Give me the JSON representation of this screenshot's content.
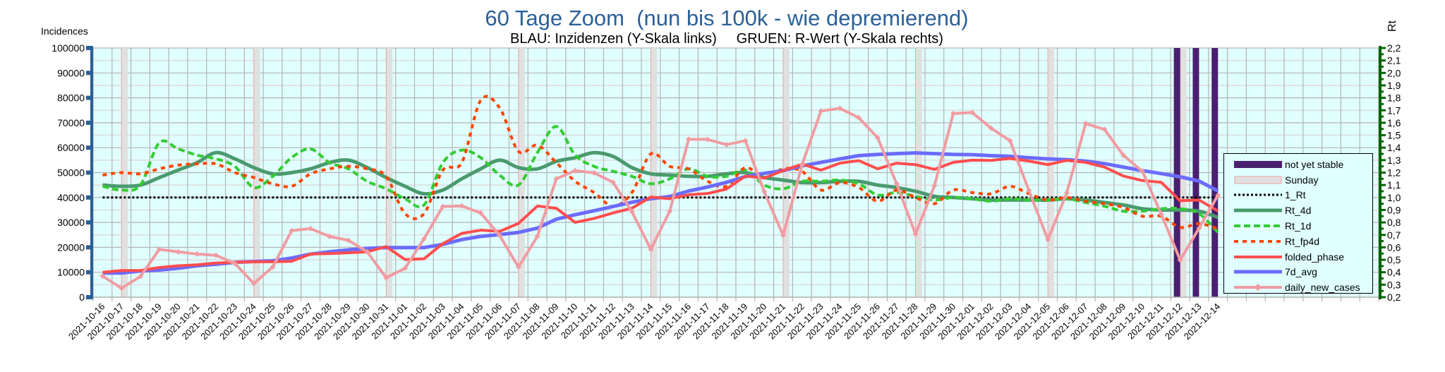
{
  "title": "60 Tage Zoom  (nun bis 100k - wie depremierend)",
  "subtitle": "BLAU: Inzidenzen (Y-Skala links)     GRUEN: R-Wert (Y-Skala rechts)",
  "chart_data": {
    "type": "line",
    "title": "60 Tage Zoom  (nun bis 100k - wie depremierend)",
    "ylabel_left": "Incidences",
    "ylabel_right": "Rt",
    "ylim_left": [
      0,
      100000
    ],
    "ylim_right": [
      0.2,
      2.2
    ],
    "yticks_left": [
      "0",
      "10000",
      "20000",
      "30000",
      "40000",
      "50000",
      "60000",
      "70000",
      "80000",
      "90000",
      "100000"
    ],
    "yticks_right": [
      "0,2",
      "0,3",
      "0,4",
      "0,5",
      "0,6",
      "0,7",
      "0,8",
      "0,9",
      "1,0",
      "1,1",
      "1,2",
      "1,3",
      "1,4",
      "1,5",
      "1,6",
      "1,7",
      "1,8",
      "1,9",
      "2,0",
      "2,1",
      "2,2"
    ],
    "total_category_slots": 68,
    "grid": true,
    "legend_position": "bottom-right",
    "x": [
      "2021-10-16",
      "2021-10-17",
      "2021-10-18",
      "2021-10-19",
      "2021-10-20",
      "2021-10-21",
      "2021-10-22",
      "2021-10-23",
      "2021-10-24",
      "2021-10-25",
      "2021-10-26",
      "2021-10-27",
      "2021-10-28",
      "2021-10-29",
      "2021-10-30",
      "2021-10-31",
      "2021-11-01",
      "2021-11-02",
      "2021-11-03",
      "2021-11-04",
      "2021-11-05",
      "2021-11-06",
      "2021-11-07",
      "2021-11-08",
      "2021-11-09",
      "2021-11-10",
      "2021-11-11",
      "2021-11-12",
      "2021-11-13",
      "2021-11-14",
      "2021-11-15",
      "2021-11-16",
      "2021-11-17",
      "2021-11-18",
      "2021-11-19",
      "2021-11-20",
      "2021-11-21",
      "2021-11-22",
      "2021-11-23",
      "2021-11-24",
      "2021-11-25",
      "2021-11-26",
      "2021-11-27",
      "2021-11-28",
      "2021-11-29",
      "2021-11-30",
      "2021-12-01",
      "2021-12-02",
      "2021-12-03",
      "2021-12-04",
      "2021-12-05",
      "2021-12-06",
      "2021-12-07",
      "2021-12-08",
      "2021-12-09",
      "2021-12-10",
      "2021-12-11",
      "2021-12-12",
      "2021-12-13",
      "2021-12-14"
    ],
    "sunday_index": [
      1,
      8,
      15,
      22,
      29,
      36,
      43,
      50,
      57
    ],
    "not_yet_stable_index": [
      57,
      58,
      59
    ],
    "series": [
      {
        "name": "not yet stable",
        "kind": "band",
        "color": "#4b1f6f"
      },
      {
        "name": "Sunday",
        "kind": "band",
        "color": "#e0e0e0"
      },
      {
        "name": "1_Rt",
        "axis": "right",
        "color": "#000000",
        "dash": "3 3",
        "width": 3,
        "constant": 1.0
      },
      {
        "name": "Rt_4d",
        "axis": "right",
        "color": "#4a9a6e",
        "width": 5,
        "values": [
          1.1,
          1.09,
          1.1,
          1.16,
          1.22,
          1.28,
          1.36,
          1.31,
          1.24,
          1.19,
          1.2,
          1.23,
          1.28,
          1.3,
          1.24,
          1.16,
          1.09,
          1.03,
          1.06,
          1.15,
          1.23,
          1.3,
          1.24,
          1.23,
          1.29,
          1.32,
          1.36,
          1.33,
          1.24,
          1.19,
          1.18,
          1.17,
          1.17,
          1.19,
          1.2,
          1.16,
          1.14,
          1.12,
          1.12,
          1.13,
          1.13,
          1.1,
          1.08,
          1.05,
          1.01,
          1.0,
          0.99,
          0.98,
          0.98,
          0.98,
          0.98,
          0.99,
          0.98,
          0.96,
          0.94,
          0.91,
          0.9,
          0.9,
          0.89,
          0.84
        ]
      },
      {
        "name": "Rt_1d",
        "axis": "right",
        "color": "#33cc33",
        "dash": "9 5",
        "width": 4,
        "values": [
          1.09,
          1.06,
          1.1,
          1.44,
          1.39,
          1.34,
          1.31,
          1.25,
          1.08,
          1.17,
          1.32,
          1.39,
          1.28,
          1.23,
          1.13,
          1.07,
          0.99,
          0.94,
          1.28,
          1.38,
          1.32,
          1.18,
          1.1,
          1.36,
          1.57,
          1.34,
          1.25,
          1.21,
          1.17,
          1.11,
          1.15,
          1.23,
          1.17,
          1.17,
          1.22,
          1.1,
          1.07,
          1.13,
          1.13,
          1.14,
          1.11,
          1.02,
          1.04,
          1.01,
          0.98,
          1.0,
          0.99,
          0.97,
          0.99,
          0.98,
          0.98,
          0.99,
          0.96,
          0.93,
          0.89,
          0.89,
          0.91,
          0.91,
          0.87,
          0.72
        ]
      },
      {
        "name": "Rt_fp4d",
        "axis": "right",
        "color": "#ff4500",
        "dash": "6 6",
        "width": 4,
        "values": [
          1.18,
          1.2,
          1.19,
          1.23,
          1.26,
          1.27,
          1.27,
          1.2,
          1.16,
          1.11,
          1.09,
          1.19,
          1.23,
          1.25,
          1.23,
          1.17,
          0.87,
          0.87,
          1.22,
          1.28,
          1.78,
          1.72,
          1.37,
          1.42,
          1.28,
          1.13,
          1.04,
          0.93,
          1.04,
          1.35,
          1.25,
          1.23,
          1.13,
          1.09,
          1.24,
          1.16,
          1.23,
          1.21,
          1.06,
          1.12,
          1.08,
          0.97,
          1.06,
          1.0,
          0.95,
          1.06,
          1.04,
          1.03,
          1.09,
          1.03,
          0.98,
          1.0,
          0.97,
          0.95,
          0.92,
          0.85,
          0.85,
          0.76,
          0.79,
          0.75
        ]
      },
      {
        "name": "folded_phase",
        "axis": "left",
        "color": "#ff4d4d",
        "width": 4,
        "values": [
          10000,
          10700,
          10700,
          11900,
          12600,
          13000,
          13700,
          14000,
          14200,
          14200,
          14400,
          17300,
          17500,
          17800,
          18200,
          20300,
          15100,
          15400,
          21500,
          25600,
          26900,
          26400,
          29600,
          36600,
          35700,
          30000,
          31600,
          33800,
          35700,
          40200,
          39500,
          41100,
          41600,
          43400,
          48600,
          47800,
          50800,
          53400,
          51000,
          53800,
          54800,
          51500,
          53800,
          53200,
          51300,
          54100,
          55000,
          54900,
          55700,
          54600,
          53200,
          54900,
          54100,
          52200,
          48600,
          46800,
          46100,
          38700,
          39000,
          34600
        ]
      },
      {
        "name": "7d_avg",
        "axis": "left",
        "color": "#6b6bff",
        "width": 5,
        "values": [
          9700,
          9700,
          10500,
          10900,
          11600,
          12600,
          13200,
          14000,
          14300,
          14600,
          15700,
          17300,
          18200,
          19000,
          19600,
          19900,
          19900,
          19900,
          21200,
          23100,
          24400,
          25100,
          26000,
          27700,
          31300,
          33100,
          34700,
          36400,
          38100,
          39500,
          40400,
          42600,
          44200,
          46100,
          48400,
          49700,
          50800,
          52700,
          54100,
          55500,
          56800,
          57300,
          57600,
          57900,
          57600,
          57300,
          57200,
          56800,
          56500,
          56000,
          55500,
          55200,
          54600,
          53600,
          52200,
          50800,
          49600,
          48300,
          46600,
          42600
        ]
      },
      {
        "name": "daily_new_cases",
        "axis": "left",
        "color": "#f09ca2",
        "width": 4,
        "marker": "diamond",
        "values": [
          8500,
          3600,
          8300,
          19200,
          18200,
          17300,
          16800,
          13500,
          5500,
          12100,
          26700,
          27500,
          24400,
          22800,
          18200,
          7800,
          11600,
          23400,
          36400,
          36600,
          33800,
          24800,
          12100,
          24400,
          47500,
          50800,
          49900,
          46100,
          34300,
          19200,
          34500,
          63400,
          63300,
          61200,
          62800,
          42300,
          24800,
          53200,
          74700,
          75800,
          72000,
          64000,
          45600,
          25300,
          44700,
          73700,
          74100,
          67800,
          62800,
          42800,
          23100,
          41800,
          69700,
          67300,
          56900,
          50500,
          33300,
          14900,
          27700,
          40900
        ]
      }
    ]
  },
  "colors": {
    "background": "#e0ffff",
    "grid": "#b3b3b3",
    "grid_minor": "#dcdcdc",
    "left_axis": "#2a6099",
    "right_axis": "#006400",
    "title": "#2a6099"
  }
}
